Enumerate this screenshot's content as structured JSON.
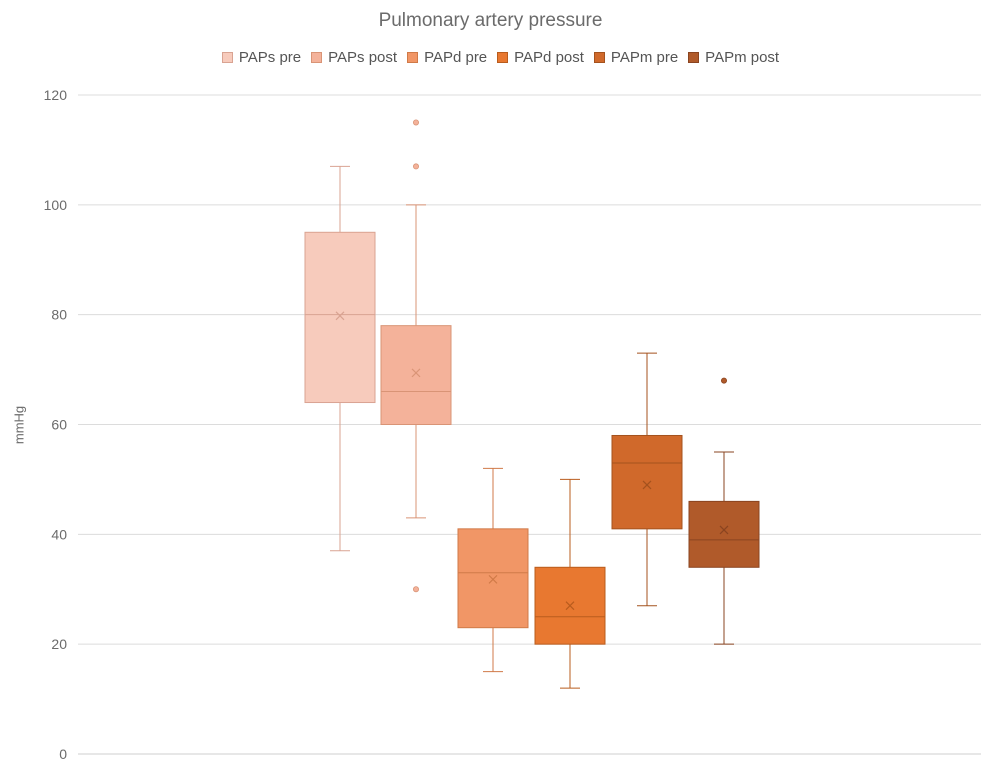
{
  "chart_data": {
    "type": "box",
    "title": "Pulmonary artery pressure",
    "ylabel": "mmHg",
    "xlabel": "",
    "ylim": [
      0,
      120
    ],
    "yticks": [
      0,
      20,
      40,
      60,
      80,
      100,
      120
    ],
    "grid": true,
    "legend_position": "top",
    "series": [
      {
        "name": "PAPs pre",
        "color": "#F7CBBC",
        "stroke": "#D9A392",
        "min": 37,
        "q1": 64,
        "median": 80,
        "q3": 95,
        "max": 107,
        "mean": 79.8,
        "outliers": []
      },
      {
        "name": "PAPs post",
        "color": "#F4B29A",
        "stroke": "#D99476",
        "min": 43,
        "q1": 60,
        "median": 66,
        "q3": 78,
        "max": 100,
        "mean": 69.4,
        "outliers": [
          30,
          107,
          115
        ]
      },
      {
        "name": "PAPd pre",
        "color": "#F19666",
        "stroke": "#D07A48",
        "min": 15,
        "q1": 23,
        "median": 33,
        "q3": 41,
        "max": 52,
        "mean": 31.8,
        "outliers": []
      },
      {
        "name": "PAPd post",
        "color": "#E87830",
        "stroke": "#B95C1D",
        "min": 12,
        "q1": 20,
        "median": 25,
        "q3": 34,
        "max": 50,
        "mean": 27,
        "outliers": []
      },
      {
        "name": "PAPm pre",
        "color": "#D0692B",
        "stroke": "#A4521E",
        "min": 27,
        "q1": 41,
        "median": 53,
        "q3": 58,
        "max": 73,
        "mean": 49,
        "outliers": []
      },
      {
        "name": "PAPm post",
        "color": "#B05A2A",
        "stroke": "#8A4420",
        "min": 20,
        "q1": 34,
        "median": 39,
        "q3": 46,
        "max": 55,
        "mean": 40.8,
        "outliers": [
          68
        ]
      }
    ]
  }
}
